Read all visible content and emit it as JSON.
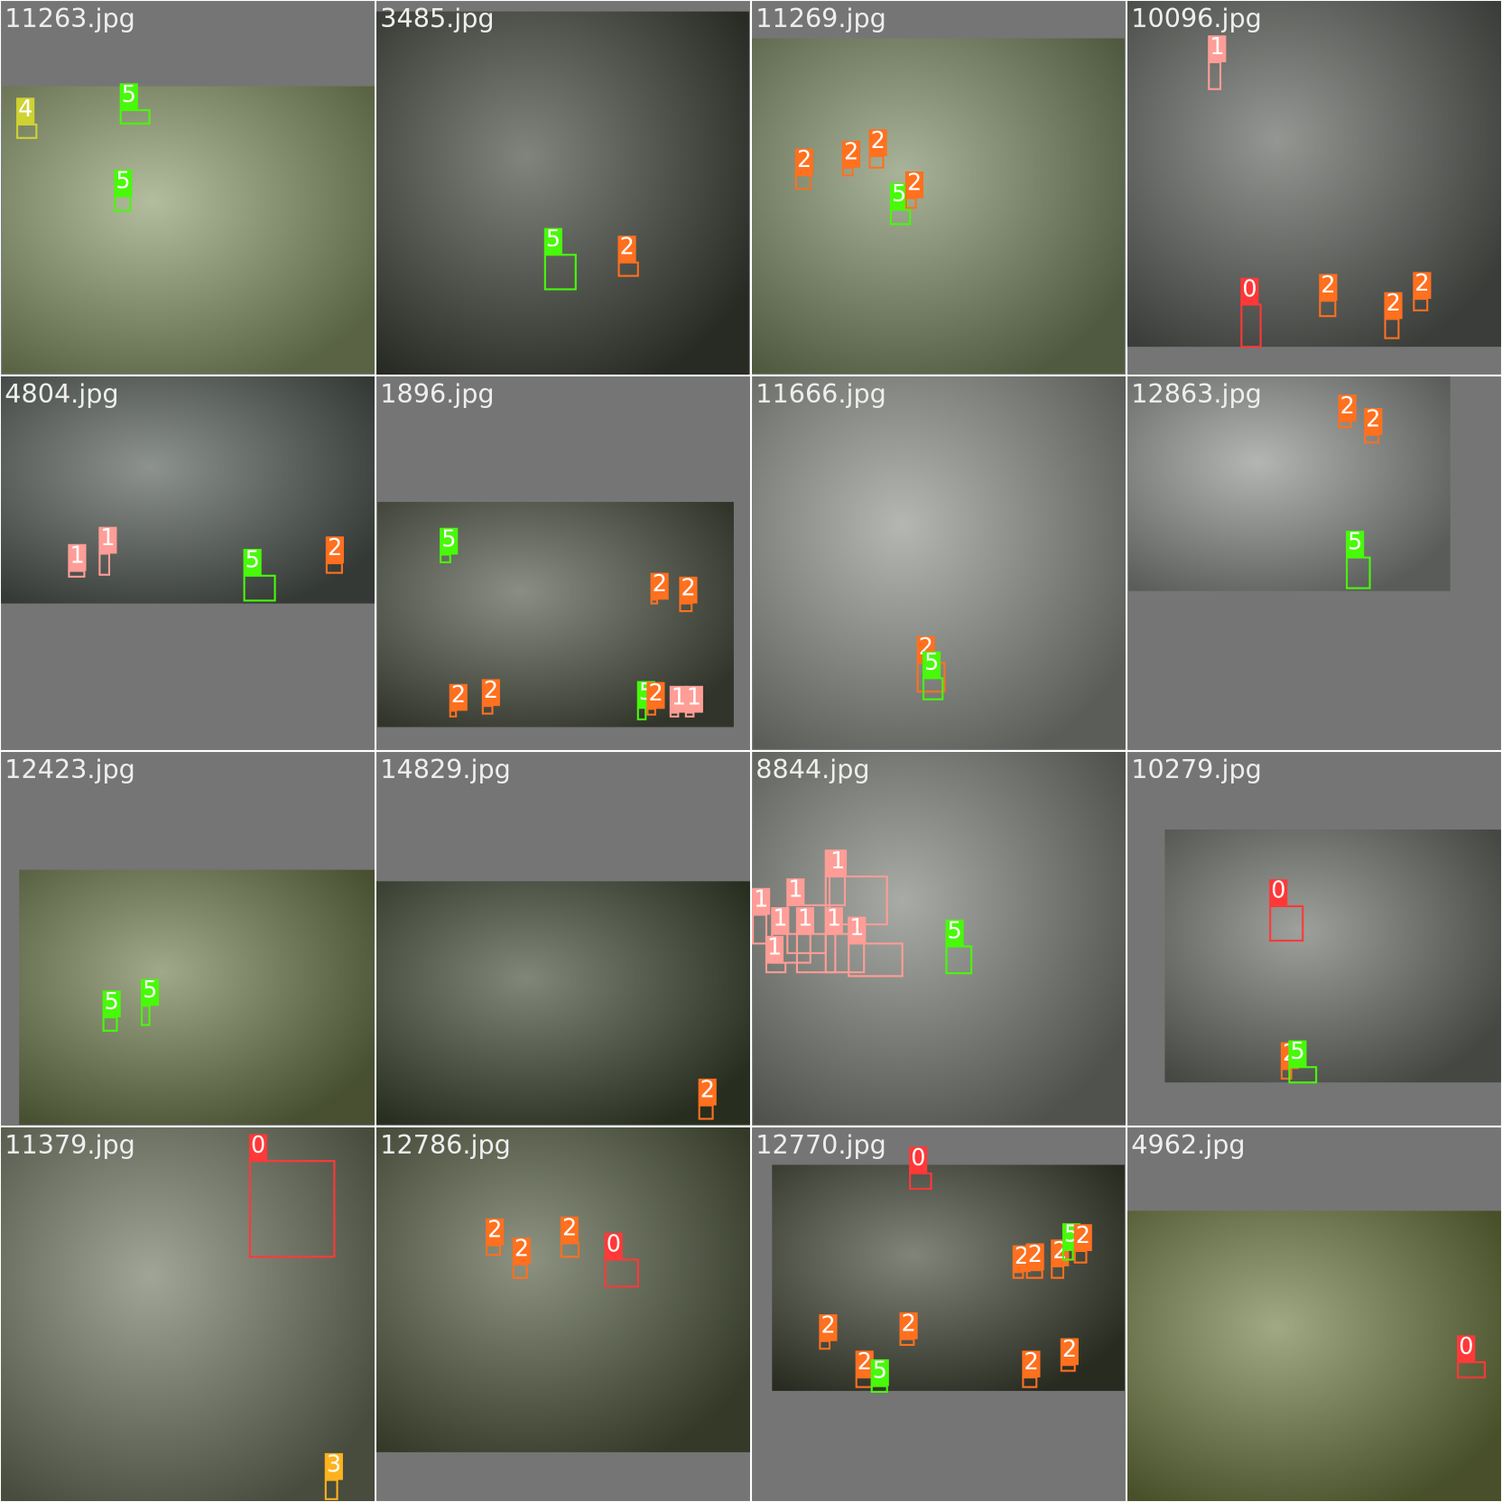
{
  "tiles": [
    {
      "name": "11263.jpg",
      "labels": [
        "4",
        "5",
        "5"
      ]
    },
    {
      "name": "3485.jpg",
      "labels": [
        "5",
        "2"
      ]
    },
    {
      "name": "11269.jpg",
      "labels": [
        "2",
        "2",
        "2",
        "5",
        "2"
      ]
    },
    {
      "name": "10096.jpg",
      "labels": [
        "1",
        "0",
        "2",
        "2",
        "2"
      ]
    },
    {
      "name": "4804.jpg",
      "labels": [
        "1",
        "1",
        "5",
        "2"
      ]
    },
    {
      "name": "1896.jpg",
      "labels": [
        "5",
        "2",
        "2",
        "2",
        "2",
        "5",
        "2",
        "1",
        "1"
      ]
    },
    {
      "name": "11666.jpg",
      "labels": [
        "2",
        "5"
      ]
    },
    {
      "name": "12863.jpg",
      "labels": [
        "2",
        "2",
        "5"
      ]
    },
    {
      "name": "12423.jpg",
      "labels": [
        "5",
        "5"
      ]
    },
    {
      "name": "14829.jpg",
      "labels": [
        "2"
      ]
    },
    {
      "name": "8844.jpg",
      "labels": [
        "1",
        "1",
        "1",
        "1",
        "1",
        "1",
        "1",
        "1",
        "1",
        "5"
      ]
    },
    {
      "name": "10279.jpg",
      "labels": [
        "0",
        "2",
        "5"
      ]
    },
    {
      "name": "11379.jpg",
      "labels": [
        "0",
        "3"
      ]
    },
    {
      "name": "12786.jpg",
      "labels": [
        "2",
        "2",
        "2",
        "0"
      ]
    },
    {
      "name": "12770.jpg",
      "labels": [
        "0",
        "2",
        "2",
        "2",
        "5",
        "2",
        "2",
        "2",
        "2",
        "5",
        "2",
        "2"
      ]
    },
    {
      "name": "4962.jpg",
      "labels": [
        "0"
      ]
    }
  ]
}
